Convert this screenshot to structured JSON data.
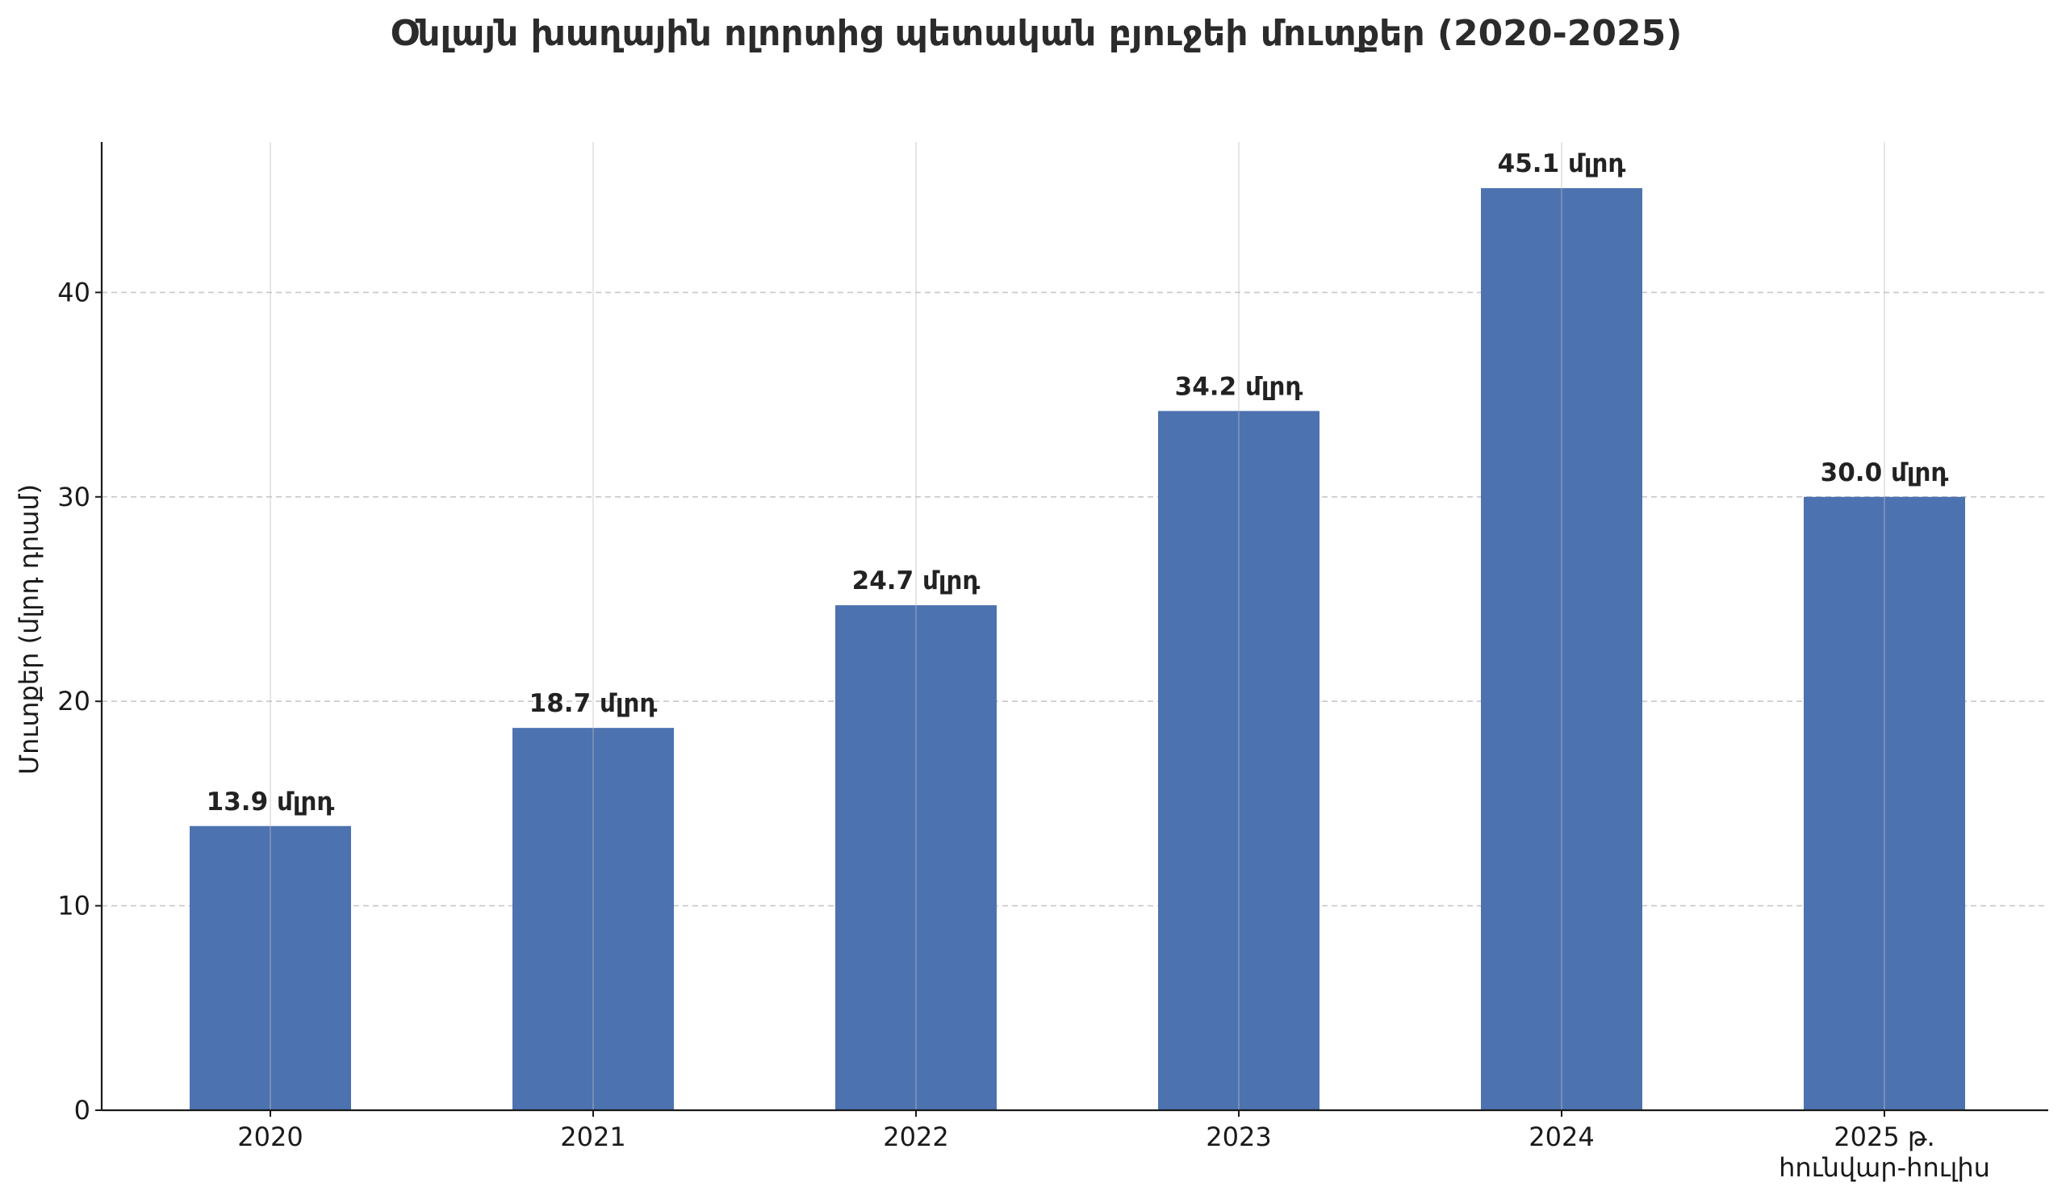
{
  "chart_data": {
    "type": "bar",
    "title": "Օնլայն խաղային ոլորտից պետական բյուջեի մուտքեր (2020-2025)",
    "xlabel": "",
    "ylabel": "Մուտքեր (մլրդ դրամ)",
    "categories": [
      [
        "2020"
      ],
      [
        "2021"
      ],
      [
        "2022"
      ],
      [
        "2023"
      ],
      [
        "2024"
      ],
      [
        "2025 թ.",
        "հունվար-հուլիս"
      ]
    ],
    "values": [
      13.9,
      18.7,
      24.7,
      34.2,
      45.1,
      30.0
    ],
    "data_labels": [
      "13.9 մլրդ",
      "18.7 մլրդ",
      "24.7 մլրդ",
      "34.2 մլրդ",
      "45.1 մլրդ",
      "30.0 մլրդ"
    ],
    "ylim": [
      0,
      47.5
    ],
    "yticks": [
      0,
      10,
      20,
      30,
      40
    ],
    "grid": true,
    "bar_color": "#4c72b0"
  }
}
